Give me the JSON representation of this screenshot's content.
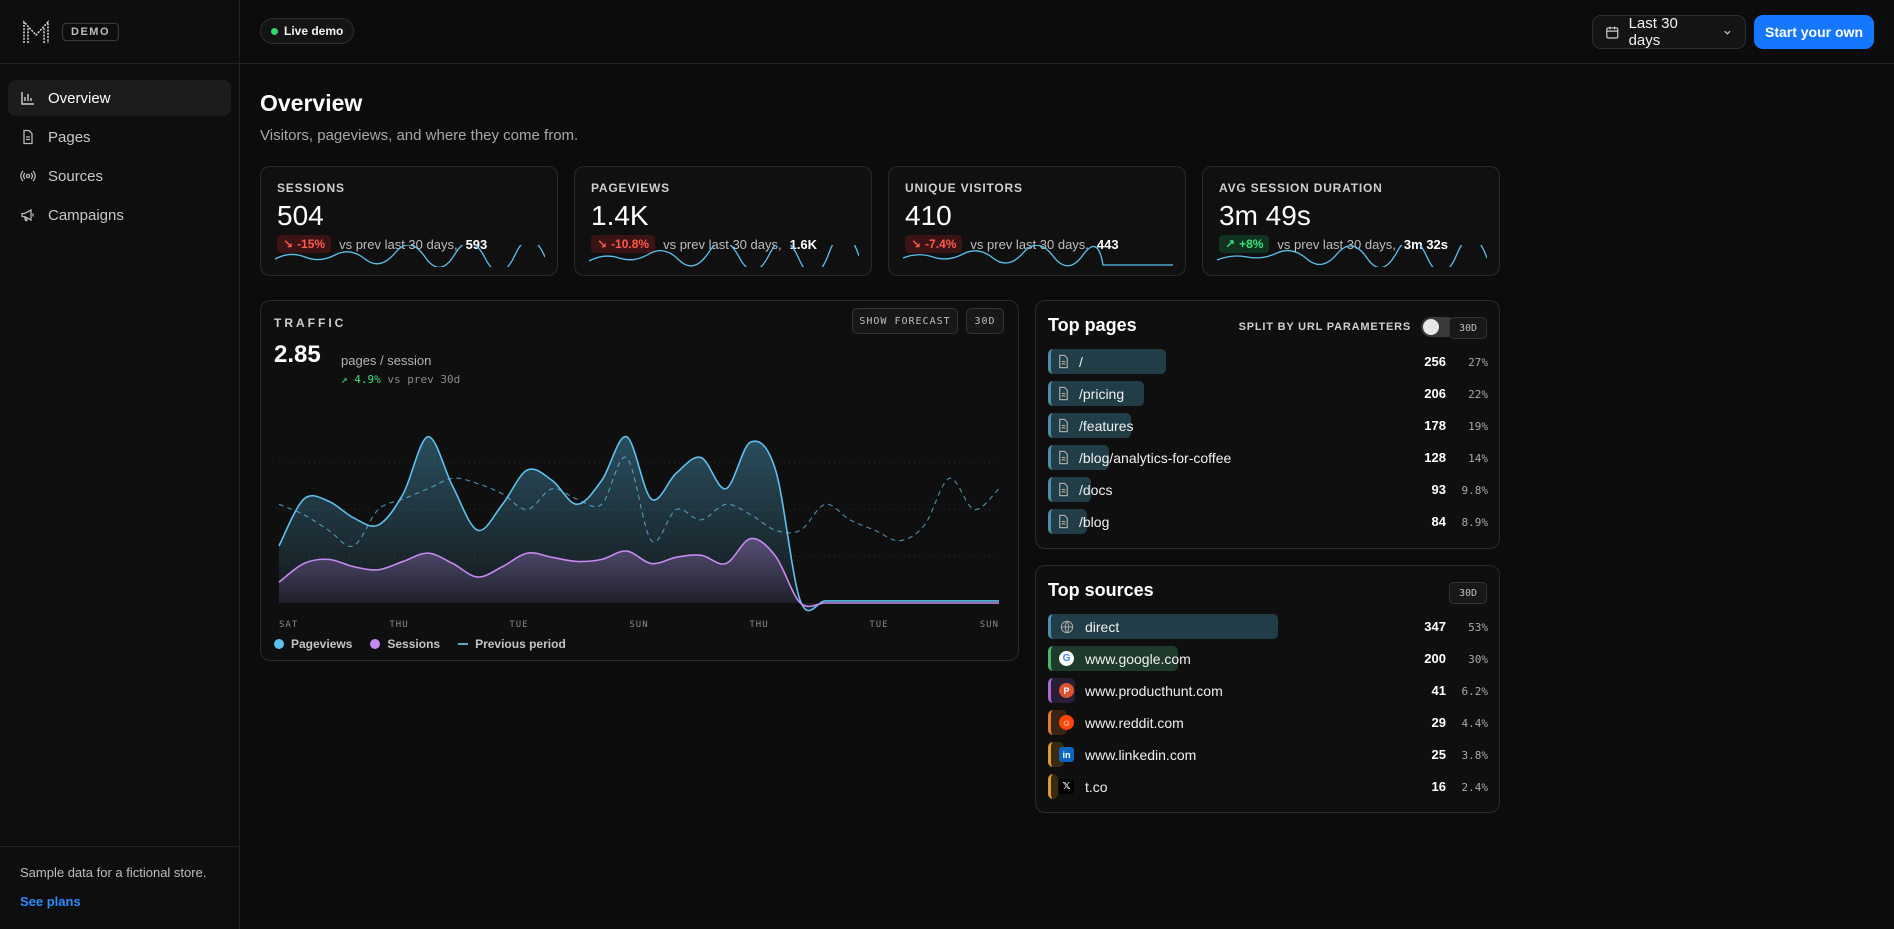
{
  "brand": {
    "badge": "DEMO"
  },
  "nav": [
    {
      "label": "Overview",
      "icon": "bar-chart-icon",
      "active": true
    },
    {
      "label": "Pages",
      "icon": "file-icon"
    },
    {
      "label": "Sources",
      "icon": "broadcast-icon"
    },
    {
      "label": "Campaigns",
      "icon": "megaphone-icon"
    }
  ],
  "sidebar_footer": {
    "note": "Sample data for a fictional store.",
    "link": "See plans"
  },
  "topbar": {
    "live_label": "Live demo",
    "range_label": "Last 30 days",
    "cta_label": "Start your own"
  },
  "header": {
    "title": "Overview",
    "subtitle": "Visitors, pageviews, and where they come from."
  },
  "stats": [
    {
      "label": "SESSIONS",
      "value": "504",
      "delta": "-15%",
      "dir": "neg",
      "compare": "vs prev last 30 days,",
      "prev": "593"
    },
    {
      "label": "PAGEVIEWS",
      "value": "1.4K",
      "delta": "-10.8%",
      "dir": "neg",
      "compare": "vs prev last 30 days,",
      "prev": "1.6K"
    },
    {
      "label": "UNIQUE VISITORS",
      "value": "410",
      "delta": "-7.4%",
      "dir": "neg",
      "compare": "vs prev last 30 days,",
      "prev": "443"
    },
    {
      "label": "AVG SESSION DURATION",
      "value": "3m 49s",
      "delta": "+8%",
      "dir": "pos",
      "compare": "vs prev last 30 days,",
      "prev": "3m 32s"
    }
  ],
  "traffic": {
    "label": "TRAFFIC",
    "forecast_label": "SHOW FORECAST",
    "range_chip": "30D",
    "value": "2.85",
    "unit": "pages / session",
    "delta": "4.9%",
    "delta_note": "vs prev 30d",
    "legend": [
      "Pageviews",
      "Sessions",
      "Previous period"
    ]
  },
  "chart_data": {
    "type": "area",
    "title": "",
    "xlabel": "",
    "ylabel": "",
    "x_tick_labels": [
      "SAT",
      "THU",
      "TUE",
      "SUN",
      "THU",
      "TUE",
      "SUN"
    ],
    "grid": false,
    "legend_position": "bottom-left",
    "series": [
      {
        "name": "Pageviews",
        "color": "#5cc1ee",
        "values": [
          55,
          100,
          98,
          82,
          75,
          105,
          160,
          112,
          70,
          95,
          128,
          118,
          95,
          118,
          160,
          100,
          125,
          140,
          110,
          155,
          128,
          2,
          2,
          2,
          2,
          2,
          2,
          2,
          2,
          2
        ]
      },
      {
        "name": "Sessions",
        "color": "#c58af0",
        "values": [
          20,
          38,
          42,
          35,
          32,
          40,
          48,
          38,
          25,
          35,
          48,
          44,
          40,
          42,
          50,
          38,
          44,
          46,
          38,
          62,
          45,
          0,
          0,
          0,
          0,
          0,
          0,
          0,
          0,
          0
        ]
      },
      {
        "name": "Previous period",
        "color": "#5aa5c8",
        "dashed": true,
        "values": [
          95,
          85,
          70,
          55,
          90,
          100,
          110,
          120,
          115,
          105,
          90,
          110,
          100,
          95,
          140,
          60,
          90,
          80,
          95,
          85,
          70,
          70,
          95,
          80,
          70,
          60,
          75,
          120,
          90,
          110
        ]
      }
    ],
    "ylim": [
      0,
      180
    ]
  },
  "top_pages": {
    "title": "Top pages",
    "split_label": "SPLIT BY URL PARAMETERS",
    "range_chip": "30D",
    "rows": [
      {
        "label": "/",
        "value": "256",
        "pct": "27%",
        "share": 0.27
      },
      {
        "label": "/pricing",
        "value": "206",
        "pct": "22%",
        "share": 0.22
      },
      {
        "label": "/features",
        "value": "178",
        "pct": "19%",
        "share": 0.19
      },
      {
        "label": "/blog/analytics-for-coffee",
        "value": "128",
        "pct": "14%",
        "share": 0.14
      },
      {
        "label": "/docs",
        "value": "93",
        "pct": "9.8%",
        "share": 0.098
      },
      {
        "label": "/blog",
        "value": "84",
        "pct": "8.9%",
        "share": 0.089
      }
    ]
  },
  "top_sources": {
    "title": "Top sources",
    "range_chip": "30D",
    "rows": [
      {
        "label": "direct",
        "value": "347",
        "pct": "53%",
        "share": 0.53,
        "icon": "globe-icon",
        "accent": "#4d8ea8",
        "fill": "#213e48"
      },
      {
        "label": "www.google.com",
        "value": "200",
        "pct": "30%",
        "share": 0.3,
        "icon": "google-icon",
        "accent": "#4db56a",
        "fill": "#1e3a2a"
      },
      {
        "label": "www.producthunt.com",
        "value": "41",
        "pct": "6.2%",
        "share": 0.062,
        "icon": "producthunt-icon",
        "accent": "#a86ad0",
        "fill": "#2a1e36"
      },
      {
        "label": "www.reddit.com",
        "value": "29",
        "pct": "4.4%",
        "share": 0.044,
        "icon": "reddit-icon",
        "accent": "#e07a2e",
        "fill": "#3a2414"
      },
      {
        "label": "www.linkedin.com",
        "value": "25",
        "pct": "3.8%",
        "share": 0.038,
        "icon": "linkedin-icon",
        "accent": "#e09a2e",
        "fill": "#3a2a14"
      },
      {
        "label": "t.co",
        "value": "16",
        "pct": "2.4%",
        "share": 0.024,
        "icon": "x-icon",
        "accent": "#e09a2e",
        "fill": "#3a2a14"
      }
    ]
  }
}
